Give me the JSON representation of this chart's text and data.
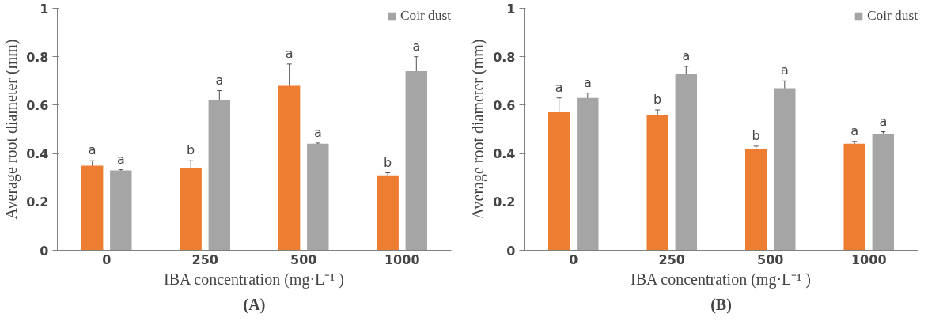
{
  "chart_data": [
    {
      "type": "bar",
      "xlabel": "IBA concentration (mg·L⁻¹ )",
      "ylabel": "Average root diameter (mm)",
      "categories": [
        "0",
        "250",
        "500",
        "1000"
      ],
      "ylim": [
        0,
        1
      ],
      "yticks": [
        0,
        0.2,
        0.4,
        0.6,
        0.8,
        1
      ],
      "grid": false,
      "legend": "top right",
      "series": [
        {
          "color": "#ed7d31",
          "values": [
            0.35,
            0.34,
            0.68,
            0.31
          ],
          "errors": [
            0.02,
            0.03,
            0.09,
            0.01
          ],
          "value_labels": [
            "a",
            "b",
            "a",
            "b"
          ]
        },
        {
          "name": "Coir dust",
          "color": "#a5a5a5",
          "values": [
            0.33,
            0.62,
            0.44,
            0.74
          ],
          "errors": [
            0.003,
            0.04,
            0.003,
            0.06
          ],
          "value_labels": [
            "a",
            "a",
            "a",
            "a"
          ]
        }
      ],
      "annotations": [
        "(A)"
      ]
    },
    {
      "type": "bar",
      "xlabel": "IBA concentration (mg·L⁻¹ )",
      "ylabel": "Average root diameter (mm)",
      "categories": [
        "0",
        "250",
        "500",
        "1000"
      ],
      "ylim": [
        0,
        1
      ],
      "yticks": [
        0,
        0.2,
        0.4,
        0.6,
        0.8,
        1
      ],
      "grid": false,
      "legend": "top right",
      "series": [
        {
          "color": "#ed7d31",
          "values": [
            0.57,
            0.56,
            0.42,
            0.44
          ],
          "errors": [
            0.06,
            0.02,
            0.01,
            0.01
          ],
          "value_labels": [
            "a",
            "b",
            "b",
            "a"
          ]
        },
        {
          "name": "Coir dust",
          "color": "#a5a5a5",
          "values": [
            0.63,
            0.73,
            0.67,
            0.48
          ],
          "errors": [
            0.02,
            0.03,
            0.03,
            0.01
          ],
          "value_labels": [
            "a",
            "a",
            "a",
            "a"
          ]
        }
      ],
      "annotations": [
        "(B)"
      ]
    }
  ]
}
